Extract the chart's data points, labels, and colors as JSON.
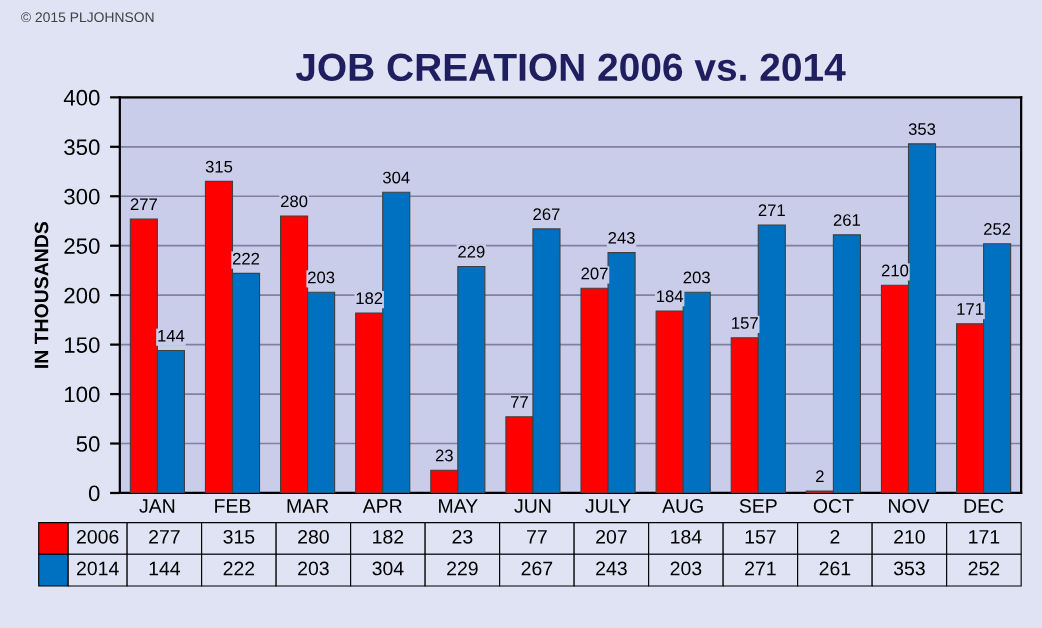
{
  "chart_data": {
    "type": "bar",
    "title": "JOB CREATION 2006 vs. 2014",
    "ylabel": "IN THOUSANDS",
    "annotations": [
      "© 2015 PLJOHNSON",
      {
        "text": "277",
        "x": "JAN",
        "y": 277
      },
      {
        "text": "315",
        "x": "FEB",
        "y": 315
      },
      {
        "text": "280",
        "x": "MAR",
        "y": 280
      },
      {
        "text": "182",
        "x": "APR",
        "y": 182
      },
      {
        "text": "23",
        "x": "MAY",
        "y": 23
      },
      {
        "text": "77",
        "x": "JUN",
        "y": 77
      },
      {
        "text": "207",
        "x": "JULY",
        "y": 207
      },
      {
        "text": "184",
        "x": "AUG",
        "y": 184
      },
      {
        "text": "157",
        "x": "SEP",
        "y": 157
      },
      {
        "text": "2",
        "x": "OCT",
        "y": 2
      },
      {
        "text": "210",
        "x": "NOV",
        "y": 210
      },
      {
        "text": "171",
        "x": "DEC",
        "y": 171
      },
      {
        "text": "144",
        "x": "JAN",
        "y": 144
      },
      {
        "text": "222",
        "x": "FEB",
        "y": 222
      },
      {
        "text": "203",
        "x": "MAR",
        "y": 203
      },
      {
        "text": "304",
        "x": "APR",
        "y": 304
      },
      {
        "text": "229",
        "x": "MAY",
        "y": 229
      },
      {
        "text": "267",
        "x": "JUN",
        "y": 267
      },
      {
        "text": "243",
        "x": "JULY",
        "y": 243
      },
      {
        "text": "203",
        "x": "AUG",
        "y": 203
      },
      {
        "text": "271",
        "x": "SEP",
        "y": 271
      },
      {
        "text": "261",
        "x": "OCT",
        "y": 261
      },
      {
        "text": "353",
        "x": "NOV",
        "y": 353
      },
      {
        "text": "252",
        "x": "DEC",
        "y": 252
      }
    ],
    "categories": [
      "JAN",
      "FEB",
      "MAR",
      "APR",
      "MAY",
      "JUN",
      "JULY",
      "AUG",
      "SEP",
      "OCT",
      "NOV",
      "DEC"
    ],
    "series": [
      {
        "name": "2006",
        "color": "#ff0000",
        "values": [
          277,
          315,
          280,
          182,
          23,
          77,
          207,
          184,
          157,
          2,
          210,
          171
        ]
      },
      {
        "name": "2014",
        "color": "#0070c0",
        "values": [
          144,
          222,
          203,
          304,
          229,
          267,
          243,
          203,
          271,
          261,
          353,
          252
        ]
      }
    ],
    "ylim": [
      0,
      400
    ],
    "yticks": [
      0,
      50,
      100,
      150,
      200,
      250,
      300,
      350,
      400
    ],
    "grid": "y",
    "data_labels": true,
    "legend": "bottom"
  }
}
